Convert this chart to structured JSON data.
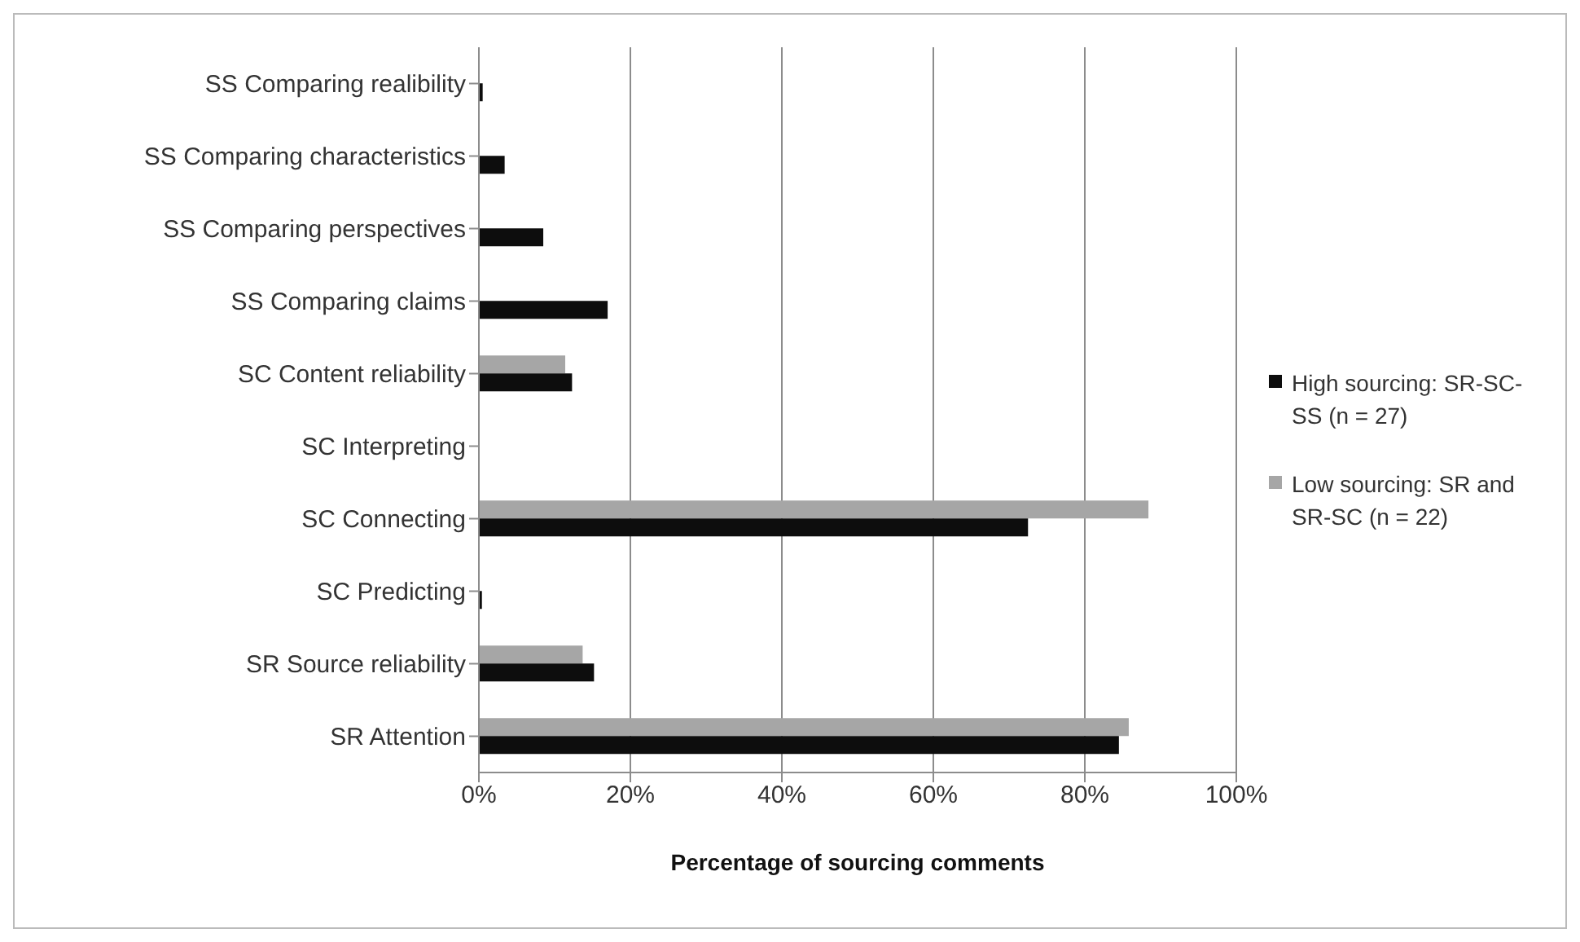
{
  "chart_data": {
    "type": "bar",
    "orientation": "horizontal",
    "xlabel": "Percentage of sourcing comments",
    "categories": [
      "SS Comparing realibility",
      "SS Comparing characteristics",
      "SS Comparing perspectives",
      "SS Comparing claims",
      "SC Content reliability",
      "SC Interpreting",
      "SC Connecting",
      "SC Predicting",
      "SR Source reliability",
      "SR Attention"
    ],
    "series": [
      {
        "name": "Low sourcing: SR and SR-SC (n = 22)",
        "color": "#a6a6a6",
        "values": [
          0,
          0,
          0,
          0,
          11.4,
          0,
          88.4,
          0,
          13.7,
          85.8
        ]
      },
      {
        "name": "High sourcing: SR-SC-SS (n = 27)",
        "color": "#0d0d0d",
        "values": [
          0.5,
          3.4,
          8.5,
          17,
          12.3,
          0,
          72.5,
          0.4,
          15.2,
          84.5
        ]
      }
    ],
    "xlim": [
      0,
      100
    ],
    "xticks": [
      {
        "value": 0,
        "label": "0%"
      },
      {
        "value": 20,
        "label": "20%"
      },
      {
        "value": 40,
        "label": "40%"
      },
      {
        "value": 60,
        "label": "60%"
      },
      {
        "value": 80,
        "label": "80%"
      },
      {
        "value": 100,
        "label": "100%"
      }
    ],
    "grid": "x",
    "legend": "right"
  }
}
